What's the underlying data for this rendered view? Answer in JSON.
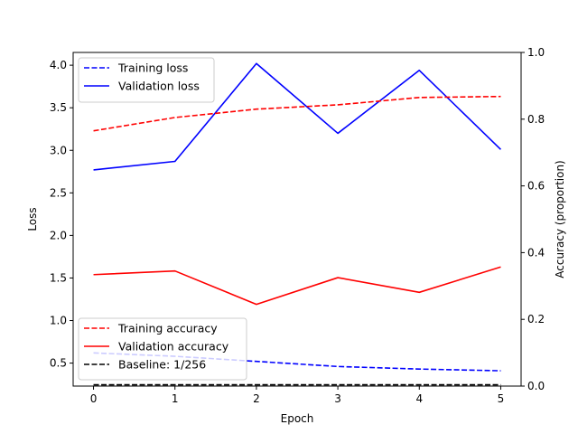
{
  "chart_data": {
    "type": "line",
    "x": [
      0,
      1,
      2,
      3,
      4,
      5
    ],
    "xlabel": "Epoch",
    "ylabel_left": "Loss",
    "ylabel_right": "Accuracy (proportion)",
    "xlim": [
      -0.25,
      5.25
    ],
    "ylim_left": [
      0.23,
      4.15
    ],
    "ylim_right": [
      0.0,
      1.0
    ],
    "xticks": [
      "0",
      "1",
      "2",
      "3",
      "4",
      "5"
    ],
    "yticks_left": [
      "0.5",
      "1.0",
      "1.5",
      "2.0",
      "2.5",
      "3.0",
      "3.5",
      "4.0"
    ],
    "yticks_right": [
      "0.0",
      "0.2",
      "0.4",
      "0.6",
      "0.8",
      "1.0"
    ],
    "grid": false,
    "series": [
      {
        "name": "Training loss",
        "axis": "left",
        "color": "#0000ff",
        "style": "dashed",
        "values": [
          0.62,
          0.58,
          0.52,
          0.46,
          0.43,
          0.41
        ]
      },
      {
        "name": "Validation loss",
        "axis": "left",
        "color": "#0000ff",
        "style": "solid",
        "values": [
          2.77,
          2.87,
          4.02,
          3.2,
          3.94,
          3.01
        ]
      },
      {
        "name": "Training accuracy",
        "axis": "right",
        "color": "#ff0000",
        "style": "dashed",
        "values": [
          0.765,
          0.805,
          0.83,
          0.843,
          0.865,
          0.868
        ]
      },
      {
        "name": "Validation accuracy",
        "axis": "right",
        "color": "#ff0000",
        "style": "solid",
        "values": [
          0.334,
          0.345,
          0.245,
          0.325,
          0.281,
          0.357
        ]
      },
      {
        "name": "Baseline: 1/256",
        "axis": "right",
        "color": "#000000",
        "style": "dashed",
        "values": [
          0.0039,
          0.0039,
          0.0039,
          0.0039,
          0.0039,
          0.0039
        ]
      }
    ],
    "legends": [
      {
        "placement": "upper-left",
        "entries": [
          "Training loss",
          "Validation loss"
        ]
      },
      {
        "placement": "lower-left",
        "entries": [
          "Training accuracy",
          "Validation accuracy",
          "Baseline: 1/256"
        ]
      }
    ]
  }
}
